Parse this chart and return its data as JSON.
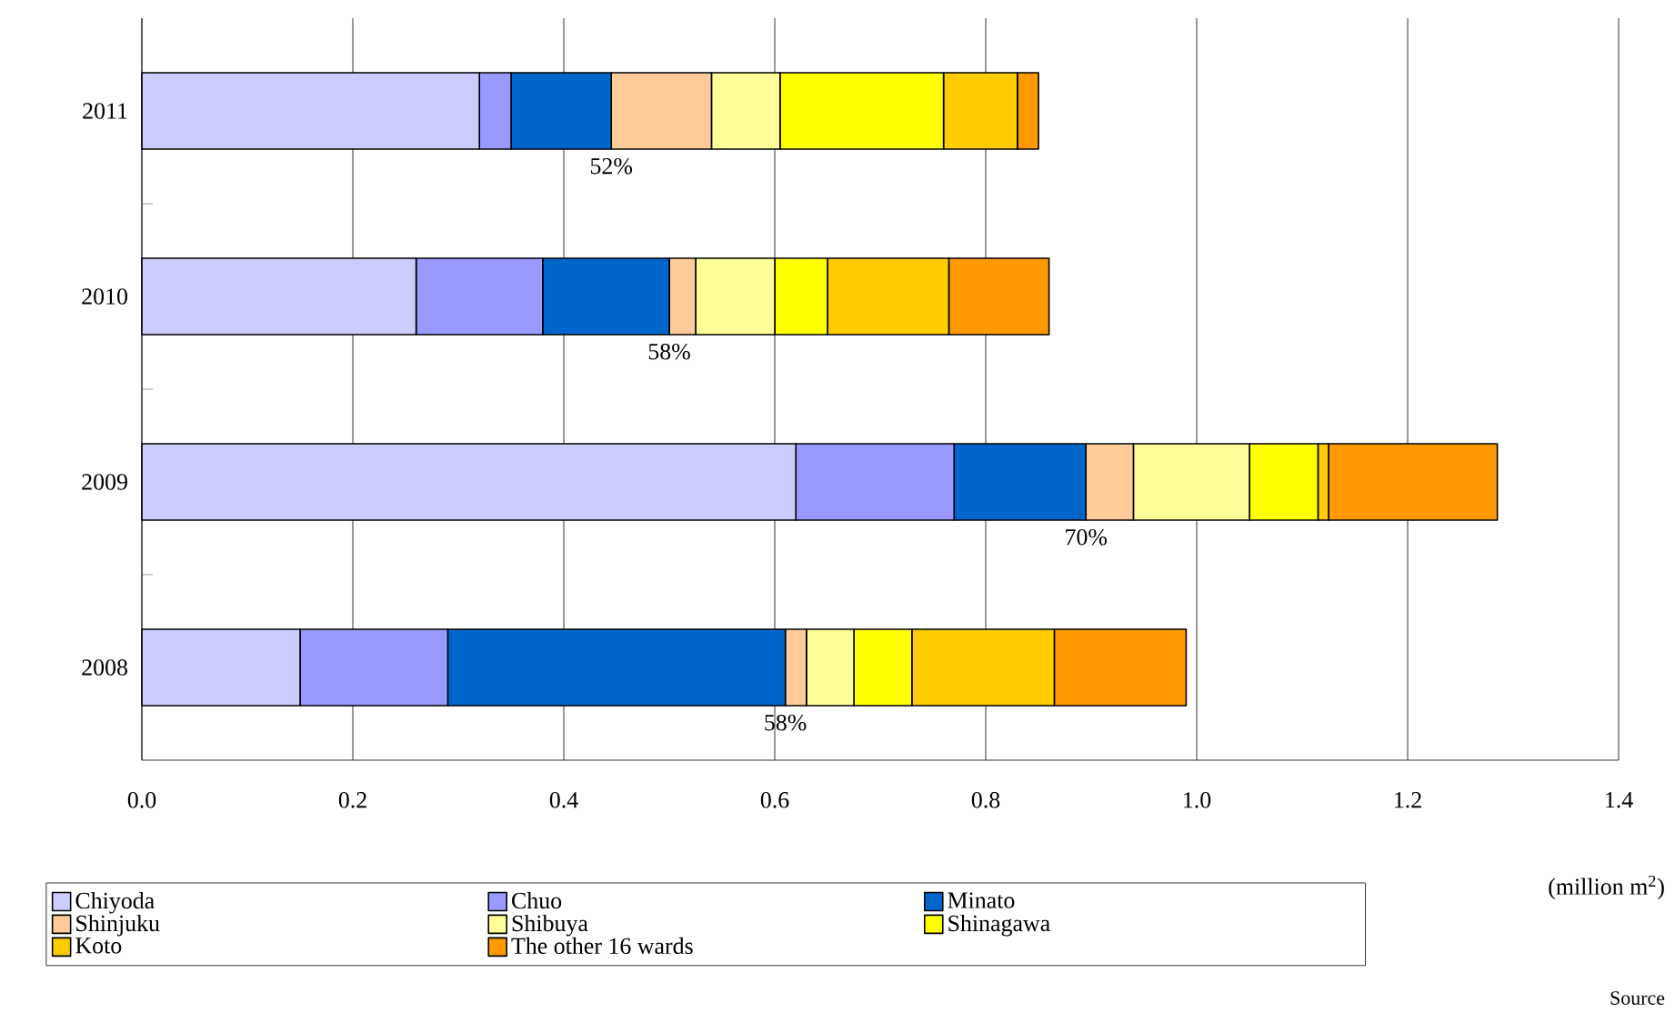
{
  "chart_data": {
    "type": "bar",
    "orientation": "horizontal",
    "stacked": true,
    "categories": [
      "2011",
      "2010",
      "2009",
      "2008"
    ],
    "series": [
      {
        "name": "Chiyoda",
        "color": "#ccccff",
        "values": [
          0.32,
          0.26,
          0.62,
          0.15
        ]
      },
      {
        "name": "Chuo",
        "color": "#9999ff",
        "values": [
          0.03,
          0.12,
          0.15,
          0.14
        ]
      },
      {
        "name": "Minato",
        "color": "#0066cc",
        "values": [
          0.095,
          0.12,
          0.125,
          0.32
        ]
      },
      {
        "name": "Shinjuku",
        "color": "#ffcc99",
        "values": [
          0.095,
          0.025,
          0.045,
          0.02
        ]
      },
      {
        "name": "Shibuya",
        "color": "#ffff99",
        "values": [
          0.065,
          0.075,
          0.11,
          0.045
        ]
      },
      {
        "name": "Shinagawa",
        "color": "#ffff00",
        "values": [
          0.155,
          0.05,
          0.065,
          0.055
        ]
      },
      {
        "name": "Koto",
        "color": "#ffcc00",
        "values": [
          0.07,
          0.115,
          0.01,
          0.135
        ]
      },
      {
        "name": "The other 16 wards",
        "color": "#ff9900",
        "values": [
          0.02,
          0.095,
          0.16,
          0.125
        ]
      }
    ],
    "xlim": [
      0,
      1.4
    ],
    "xticks": [
      {
        "value": 0,
        "label": "0.0"
      },
      {
        "value": 0.2,
        "label": "0.2"
      },
      {
        "value": 0.4,
        "label": "0.4"
      },
      {
        "value": 0.6,
        "label": "0.6"
      },
      {
        "value": 0.8,
        "label": "0.8"
      },
      {
        "value": 1.0,
        "label": "1.0"
      },
      {
        "value": 1.2,
        "label": "1.2"
      },
      {
        "value": 1.4,
        "label": "1.4"
      }
    ],
    "xlabel": "(million m$^{2}$)",
    "grid": "x",
    "legend": "bottom",
    "annotations": [
      "52%",
      "58%",
      "70%",
      "58%",
      "Source"
    ]
  }
}
